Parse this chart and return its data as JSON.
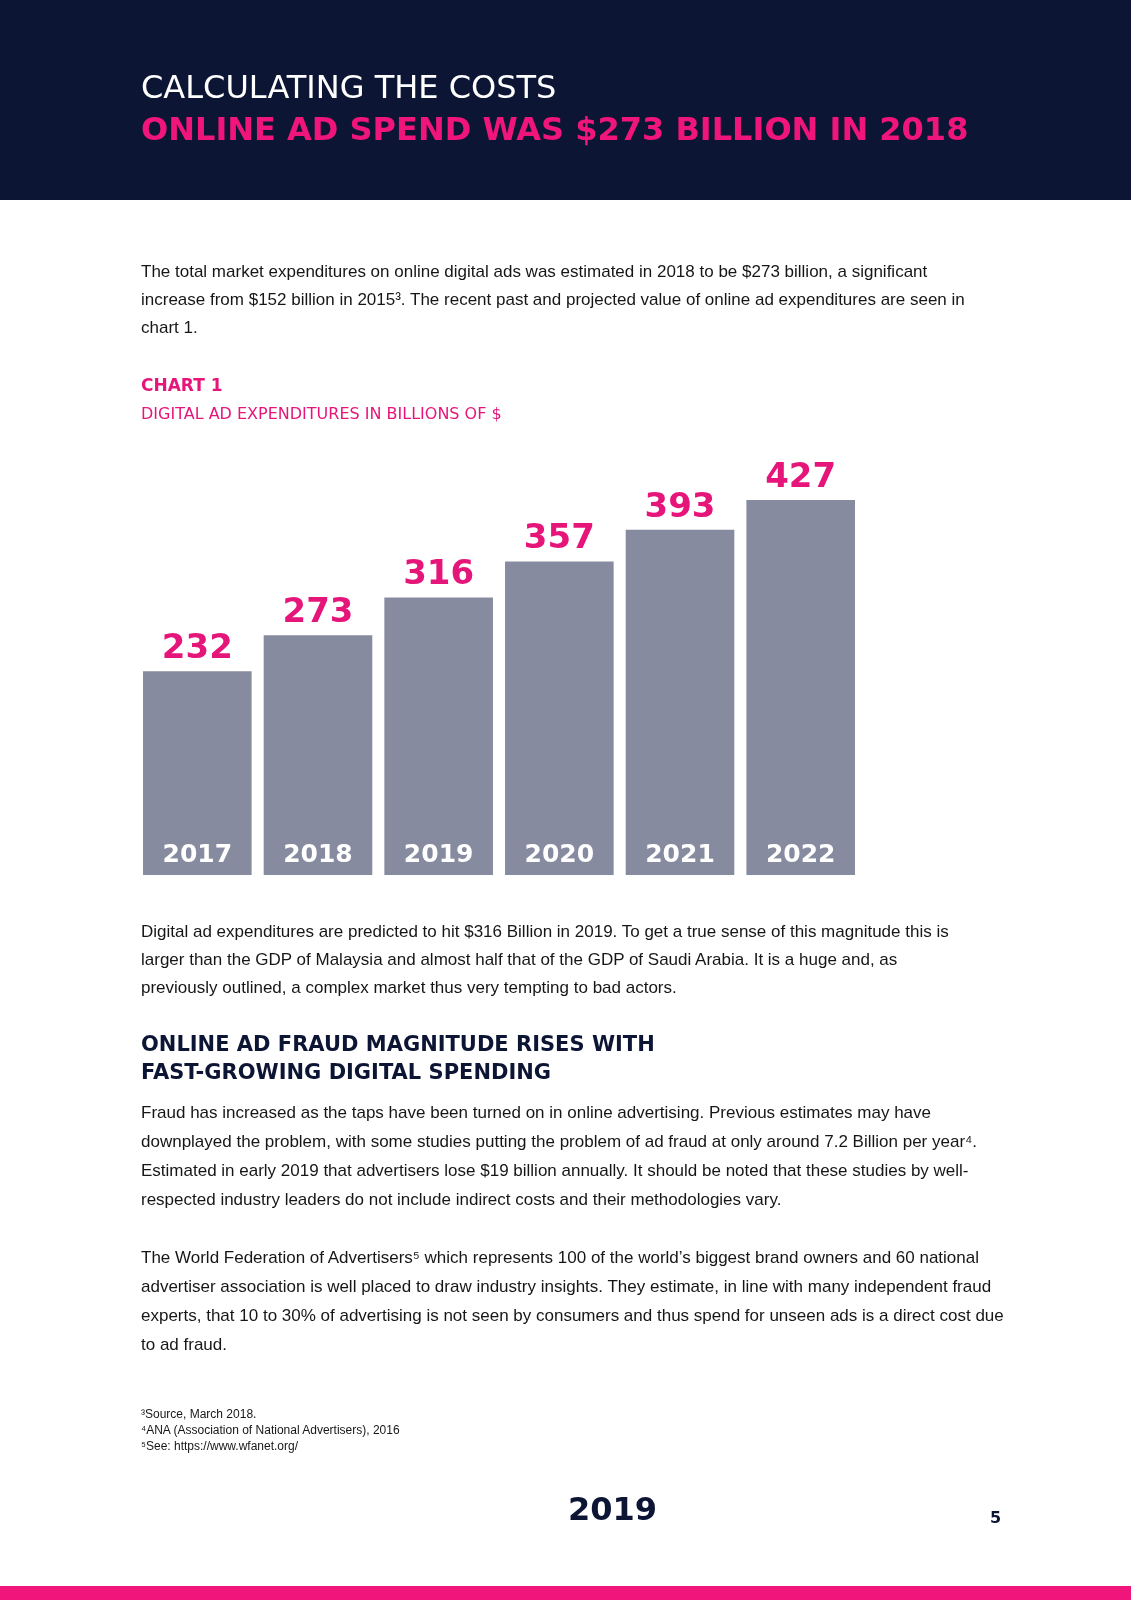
{
  "chart_data": {
    "type": "bar",
    "title": "CHART 1",
    "subtitle": "DIGITAL AD EXPENDITURES IN BILLIONS OF $",
    "categories": [
      "2017",
      "2018",
      "2019",
      "2020",
      "2021",
      "2022"
    ],
    "values": [
      232,
      273,
      316,
      357,
      393,
      427
    ],
    "color": "#878b9f",
    "data_labels": true,
    "annotations": [
      "CALCULATING THE COSTS",
      "ONLINE AD SPEND WAS $273 BILLION IN 2018",
      "The total market expenditures on online digital ads was estimated in 2018 to be $273 billion, a significant increase from $152 billion in 2015³. The recent past and projected value of online ad expenditures are seen in chart 1.",
      "Digital ad expenditures are predicted to hit $316 Billion in 2019. To get a true sense of this magnitude this is larger than the GDP of Malaysia and almost half that of the GDP of Saudi Arabia. It is a huge and, as previously outlined, a complex market thus very tempting to bad actors.",
      "ONLINE AD FRAUD MAGNITUDE RISES WITH\nFAST-GROWING DIGITAL SPENDING",
      "Fraud has increased as the taps have been turned on in online advertising. Previous estimates may have downplayed the problem, with some studies putting the problem of ad fraud at only around 7.2 Billion per year⁴. Estimated in early 2019 that advertisers lose $19 billion annually. It should be noted that these studies by well-respected industry leaders do not include indirect costs and their methodologies vary.",
      "The World Federation of Advertisers⁵ which represents 100 of the world’s biggest brand owners and 60 national advertiser association is well placed to draw industry insights. They estimate, in line with many independent fraud experts, that 10 to 30% of advertising is not seen by consumers and thus spend for unseen ads is a direct cost due to ad fraud.",
      "³Source, March 2018.\n⁴ANA (Association of National Advertisers), 2016\n⁵See: https://www.wfanet.org/",
      "2019",
      "5"
    ]
  }
}
